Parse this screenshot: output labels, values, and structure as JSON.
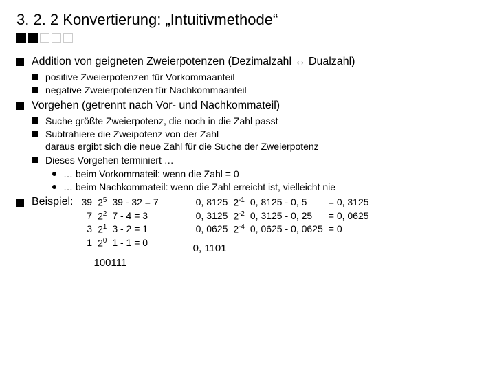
{
  "title": "3. 2. 2  Konvertierung: „Intuitivmethode“",
  "squares": {
    "filled": 2,
    "empty": 3
  },
  "bullet1": "Addition von geigneten Zweierpotenzen (Dezimalzahl ↔ Dualzahl)",
  "b1sub1": "positive Zweierpotenzen für Vorkommaanteil",
  "b1sub2": "negative Zweierpotenzen für Nachkommaanteil",
  "bullet2": "Vorgehen (getrennt nach Vor- und Nachkommateil)",
  "b2sub1": "Suche größte Zweierpotenz, die noch in die Zahl passt",
  "b2sub2a": "Subtrahiere die Zweipotenz von der Zahl",
  "b2sub2b": "daraus ergibt sich die neue Zahl für die Suche der Zweierpotenz",
  "b2sub3": "Dieses Vorgehen terminiert …",
  "b2s3a": "… beim Vorkommateil: wenn die Zahl = 0",
  "b2s3b": "… beim Nachkommateil: wenn die Zahl erreicht ist, vielleicht nie",
  "example_label": "Beispiel:",
  "int_table": {
    "rows": [
      {
        "n": "39",
        "pb": "2",
        "pe": "5",
        "sub": "39 - 32 = 7"
      },
      {
        "n": "7",
        "pb": "2",
        "pe": "2",
        "sub": "7 - 4 = 3"
      },
      {
        "n": "3",
        "pb": "2",
        "pe": "1",
        "sub": "3 - 2 = 1"
      },
      {
        "n": "1",
        "pb": "2",
        "pe": "0",
        "sub": "1 - 1 = 0"
      }
    ]
  },
  "int_result": "100111",
  "frac_table": {
    "rows": [
      {
        "n": "0, 8125",
        "pb": "2",
        "pe": "-1",
        "sub": "0, 8125 - 0, 5",
        "res": "= 0, 3125"
      },
      {
        "n": "0, 3125",
        "pb": "2",
        "pe": "-2",
        "sub": "0, 3125 - 0, 25",
        "res": "= 0, 0625"
      },
      {
        "n": "0, 0625",
        "pb": "2",
        "pe": "-4",
        "sub": "0, 0625 - 0, 0625",
        "res": "= 0"
      }
    ]
  },
  "frac_result": "0, 1101"
}
